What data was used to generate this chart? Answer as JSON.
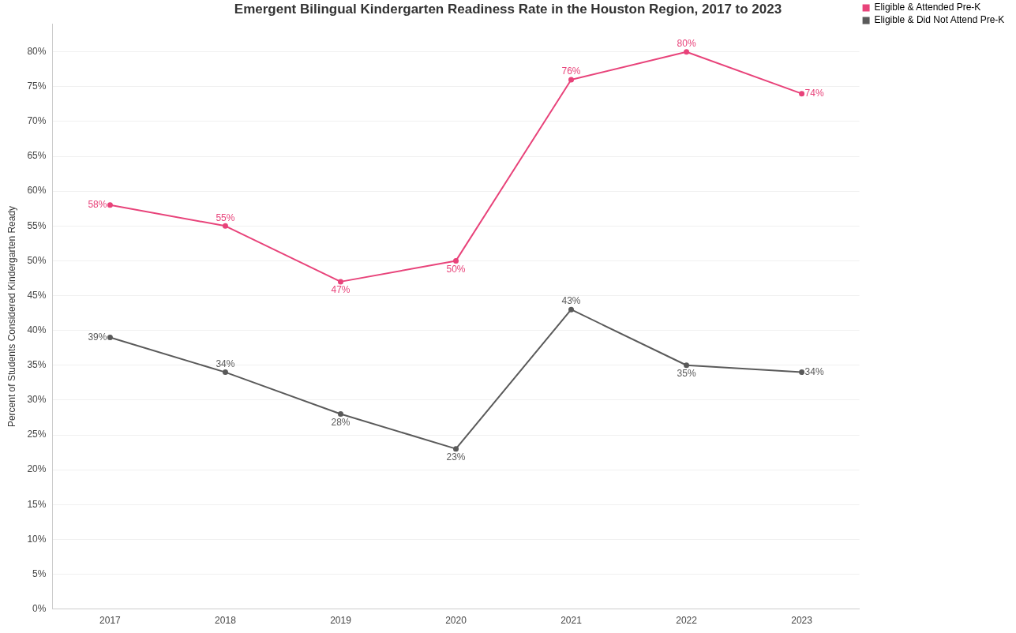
{
  "chart_data": {
    "type": "line",
    "title": "Emergent Bilingual Kindergarten Readiness Rate in the Houston Region, 2017 to 2023",
    "ylabel": "Percent of Students Considered Kindergarten Ready",
    "categories": [
      "2017",
      "2018",
      "2019",
      "2020",
      "2021",
      "2022",
      "2023"
    ],
    "series": [
      {
        "name": "Eligible & Attended Pre-K",
        "color": "#e8437a",
        "values": [
          58,
          55,
          47,
          50,
          76,
          80,
          74
        ],
        "value_labels": [
          "58%",
          "55%",
          "47%",
          "50%",
          "76%",
          "80%",
          "74%"
        ]
      },
      {
        "name": "Eligible & Did Not Attend Pre-K",
        "color": "#5a5a5a",
        "values": [
          39,
          34,
          28,
          23,
          43,
          35,
          34
        ],
        "value_labels": [
          "39%",
          "34%",
          "28%",
          "23%",
          "43%",
          "35%",
          "34%"
        ]
      }
    ],
    "ylim": [
      0,
      84
    ],
    "yticks": [
      {
        "value": 0,
        "label": "0%"
      },
      {
        "value": 5,
        "label": "5%"
      },
      {
        "value": 10,
        "label": "10%"
      },
      {
        "value": 15,
        "label": "15%"
      },
      {
        "value": 20,
        "label": "20%"
      },
      {
        "value": 25,
        "label": "25%"
      },
      {
        "value": 30,
        "label": "30%"
      },
      {
        "value": 35,
        "label": "35%"
      },
      {
        "value": 40,
        "label": "40%"
      },
      {
        "value": 45,
        "label": "45%"
      },
      {
        "value": 50,
        "label": "50%"
      },
      {
        "value": 55,
        "label": "55%"
      },
      {
        "value": 60,
        "label": "60%"
      },
      {
        "value": 65,
        "label": "65%"
      },
      {
        "value": 70,
        "label": "70%"
      },
      {
        "value": 75,
        "label": "75%"
      },
      {
        "value": 80,
        "label": "80%"
      }
    ],
    "grid": "y",
    "legend": "top right",
    "marker": "circle",
    "line_style": "solid"
  }
}
